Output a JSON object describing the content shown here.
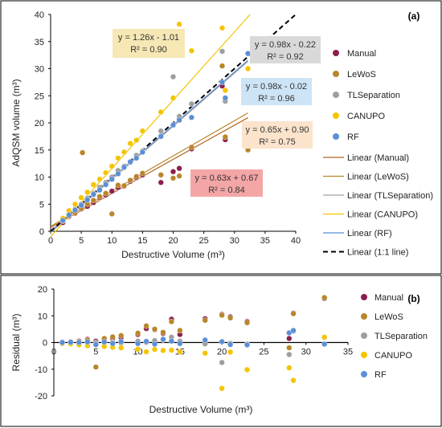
{
  "chart_data": [
    {
      "panel_label": "(a)",
      "type": "scatter",
      "xlabel": "Destructive Volume (m³)",
      "ylabel": "AdQSM volume (m³)",
      "xlim": [
        0,
        40
      ],
      "ylim": [
        0,
        40
      ],
      "xticks": [
        0,
        5,
        10,
        15,
        20,
        25,
        30,
        35,
        40
      ],
      "yticks": [
        0,
        5,
        10,
        15,
        20,
        25,
        30,
        35,
        40
      ],
      "grid": false,
      "legend_position": "right",
      "series": [
        {
          "name": "Manual",
          "color": "#8b1f4e",
          "x": [
            2,
            3,
            4,
            5,
            6,
            7,
            8,
            9,
            10,
            11,
            12,
            13,
            14,
            15,
            18,
            20,
            21,
            23,
            28,
            28.5,
            32.2
          ],
          "y": [
            1.6,
            2.7,
            3.3,
            4.1,
            4.6,
            5.3,
            6.2,
            6.7,
            7.4,
            8.1,
            8.3,
            9.2,
            9.9,
            10.4,
            9.0,
            11,
            11.6,
            15.2,
            26.8,
            16.9,
            15.9
          ]
        },
        {
          "name": "LeWoS",
          "color": "#b8862b",
          "x": [
            2,
            3,
            4,
            5,
            5.2,
            6,
            7,
            8,
            9,
            10,
            11,
            12,
            13,
            14,
            15,
            18,
            20,
            21,
            23,
            28,
            28.5,
            32.2
          ],
          "y": [
            1.9,
            2.8,
            3.4,
            4.2,
            14.5,
            5.0,
            5.7,
            6.4,
            7.0,
            3.2,
            8.5,
            8.4,
            9.4,
            10.1,
            10.7,
            10.4,
            9.8,
            10.2,
            15.5,
            30.5,
            17.4,
            15.0
          ]
        },
        {
          "name": "TLSeparation",
          "color": "#9e9e9e",
          "x": [
            2,
            3,
            4,
            5,
            6,
            7,
            8,
            9,
            10,
            11,
            12,
            13,
            14,
            15,
            18,
            20,
            21,
            23,
            28,
            28.5,
            32.2
          ],
          "y": [
            2.0,
            3.2,
            4.1,
            5.0,
            6.1,
            7.0,
            8.1,
            9.0,
            10.0,
            11.2,
            12.0,
            12.7,
            14.0,
            14.8,
            18.5,
            28.5,
            21.2,
            23.5,
            33.2,
            24.0,
            30.0
          ]
        },
        {
          "name": "CANUPO",
          "color": "#f5c400",
          "x": [
            2,
            3,
            4,
            5,
            6,
            7,
            8,
            9,
            10,
            11,
            12,
            13,
            14,
            15,
            18,
            20,
            21,
            23,
            28,
            28.5,
            32.2
          ],
          "y": [
            2.4,
            3.8,
            5.0,
            6.2,
            7.2,
            8.6,
            9.6,
            10.8,
            12.0,
            13.5,
            14.6,
            16.2,
            16.8,
            18.5,
            22.0,
            24.6,
            38.2,
            33.3,
            37.5,
            26.0,
            30.0
          ]
        },
        {
          "name": "RF",
          "color": "#5b8fd6",
          "x": [
            2,
            3,
            4,
            5,
            6,
            7,
            8,
            9,
            10,
            11,
            12,
            13,
            14,
            15,
            18,
            20,
            21,
            23,
            28,
            28.5,
            32.2
          ],
          "y": [
            2.0,
            3.0,
            3.9,
            4.8,
            5.8,
            6.8,
            7.6,
            8.6,
            9.6,
            10.6,
            11.8,
            12.8,
            13.5,
            14.6,
            17.5,
            19.6,
            20.5,
            21.0,
            27.5,
            24.6,
            32.8
          ]
        }
      ],
      "trendlines": [
        {
          "name": "Linear (Manual)",
          "color": "#b5651d",
          "slope": 0.63,
          "intercept": 0.67,
          "equation": "y = 0.63x + 0.67",
          "r2": "R² = 0.84",
          "box_color": "#f4a6a6"
        },
        {
          "name": "Linear (LeWoS)",
          "color": "#b8862b",
          "slope": 0.65,
          "intercept": 0.9,
          "equation": "y = 0.65x + 0.90",
          "r2": "R² = 0.75",
          "box_color": "#fbe3cc"
        },
        {
          "name": "Linear (TLSeparation)",
          "color": "#a0a0a0",
          "slope": 0.98,
          "intercept": -0.22,
          "equation": "y = 0.98x - 0.22",
          "r2": "R² = 0.92",
          "box_color": "#d9d9d9"
        },
        {
          "name": "Linear (CANUPO)",
          "color": "#f2c200",
          "slope": 1.26,
          "intercept": -1.01,
          "equation": "y = 1.26x - 1.01",
          "r2": "R² = 0.90",
          "box_color": "#f6e7b4"
        },
        {
          "name": "Linear (RF)",
          "color": "#5b8fd6",
          "slope": 0.98,
          "intercept": -0.02,
          "equation": "y = 0.98x - 0.02",
          "r2": "R² = 0.96",
          "box_color": "#cde4f6"
        },
        {
          "name": "Linear (1:1 line)",
          "color": "#000000",
          "slope": 1,
          "intercept": 0,
          "dashed": true
        }
      ]
    },
    {
      "panel_label": "(b)",
      "type": "scatter",
      "xlabel": "Destructive Volume (m³)",
      "ylabel": "Residual (m³)",
      "xlim": [
        0,
        35
      ],
      "ylim": [
        -20,
        20
      ],
      "xticks": [
        0,
        5,
        10,
        15,
        20,
        25,
        30,
        35
      ],
      "yticks": [
        -20,
        -10,
        0,
        10,
        20
      ],
      "grid": false,
      "legend_position": "right",
      "series": [
        {
          "name": "Manual",
          "color": "#8b1f4e",
          "x": [
            1,
            2,
            3,
            4,
            5,
            6,
            7,
            8,
            10,
            11,
            12,
            13,
            14,
            15,
            18,
            20,
            21,
            23,
            28,
            28.5,
            32.2
          ],
          "y": [
            0.2,
            0.3,
            0.6,
            1.2,
            0.5,
            1.0,
            1.5,
            1.9,
            3.0,
            5.2,
            4.8,
            3.4,
            8.7,
            3.0,
            8.9,
            10.5,
            9.6,
            7.8,
            1.5,
            11.0,
            16.5
          ]
        },
        {
          "name": "LeWoS",
          "color": "#b8862b",
          "x": [
            1,
            2,
            3,
            4,
            5,
            6,
            7,
            8,
            10,
            11,
            12,
            13,
            14,
            15,
            18,
            20,
            21,
            23,
            28,
            28.5,
            32.2
          ],
          "y": [
            0.1,
            0.2,
            0.4,
            0.9,
            -9.2,
            1.5,
            2.1,
            2.6,
            3.5,
            6.2,
            5.0,
            3.8,
            7.8,
            4.5,
            8.3,
            10.2,
            9.2,
            7.4,
            -2.0,
            10.8,
            16.8
          ]
        },
        {
          "name": "TLSeparation",
          "color": "#9e9e9e",
          "x": [
            1,
            2,
            3,
            4,
            5,
            6,
            7,
            8,
            10,
            11,
            12,
            13,
            14,
            15,
            18,
            20,
            21,
            23,
            28,
            28.5,
            32.2
          ],
          "y": [
            0.0,
            0.0,
            -0.2,
            0.0,
            0.0,
            -0.1,
            0.0,
            -0.2,
            0.5,
            0.0,
            0.7,
            1.0,
            2.0,
            0.5,
            -0.5,
            -7.5,
            -0.3,
            -0.6,
            -4.5,
            4.2,
            1.8
          ]
        },
        {
          "name": "CANUPO",
          "color": "#f5c400",
          "x": [
            1,
            2,
            3,
            4,
            5,
            6,
            7,
            8,
            10,
            11,
            12,
            13,
            14,
            15,
            18,
            20,
            21,
            23,
            28,
            28.5,
            32.2
          ],
          "y": [
            -0.4,
            -0.5,
            -0.9,
            -1.2,
            -1.0,
            -1.5,
            -1.8,
            -2.0,
            -2.5,
            -3.5,
            -2.6,
            -3.0,
            -2.9,
            -3.5,
            -4.0,
            -17.2,
            -3.6,
            -10.2,
            -9.5,
            -14.2,
            2.0
          ]
        },
        {
          "name": "RF",
          "color": "#5b8fd6",
          "x": [
            1,
            2,
            3,
            4,
            5,
            6,
            7,
            8,
            10,
            11,
            12,
            13,
            14,
            15,
            18,
            20,
            21,
            23,
            28,
            28.5,
            32.2
          ],
          "y": [
            0.0,
            0.1,
            0.0,
            0.2,
            -0.8,
            0.2,
            -0.4,
            0.3,
            -0.4,
            0.4,
            -0.6,
            1.2,
            0.5,
            -0.4,
            0.9,
            0.3,
            -0.8,
            -0.9,
            3.6,
            4.5,
            -0.6
          ]
        }
      ],
      "reference_line": {
        "y": 0,
        "color": "#000000"
      }
    }
  ]
}
